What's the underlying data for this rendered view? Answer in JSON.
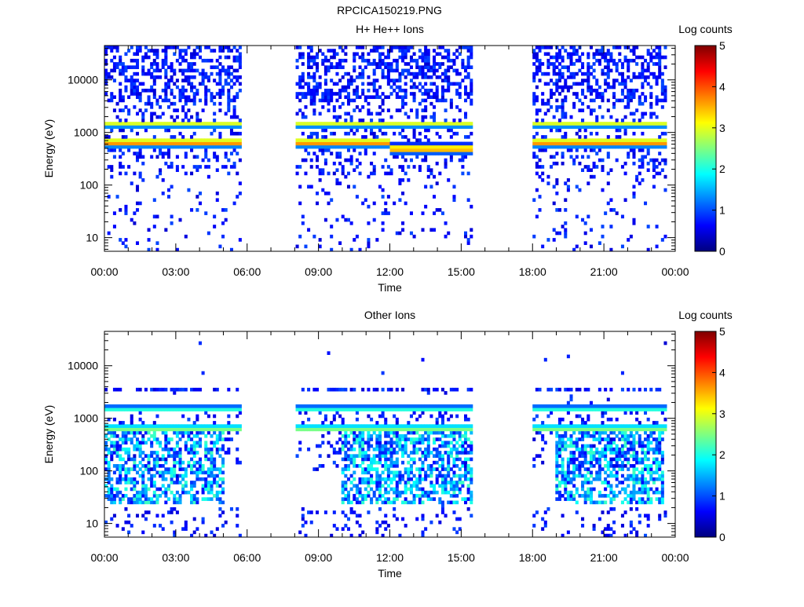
{
  "page_title": "RPCICA150219.PNG",
  "chart_data": [
    {
      "type": "heatmap",
      "title": "H+ He++ Ions",
      "xlabel": "Time",
      "ylabel": "Energy (eV)",
      "colorbar_label": "Log counts",
      "x_range_hours": [
        0,
        24
      ],
      "y_range_ev": [
        5.5,
        45000
      ],
      "y_scale": "log",
      "x_tick_labels": [
        "00:00",
        "03:00",
        "06:00",
        "09:00",
        "12:00",
        "15:00",
        "18:00",
        "21:00",
        "00:00"
      ],
      "y_tick_labels": [
        "10",
        "100",
        "1000",
        "10000"
      ],
      "y_tick_values": [
        10,
        100,
        1000,
        10000
      ],
      "colorbar_ticks": [
        "0",
        "1",
        "2",
        "3",
        "4",
        "5"
      ],
      "colorbar_range": [
        0,
        5
      ],
      "data_intervals_hours": [
        [
          0,
          5.8
        ],
        [
          8.05,
          15.5
        ],
        [
          18.0,
          23.7
        ]
      ],
      "bands": [
        {
          "name": "upper band",
          "center_ev": 1450,
          "peak_log_counts": 3.0
        },
        {
          "name": "lower band",
          "center_ev": 650,
          "peak_log_counts": 3.9
        }
      ]
    },
    {
      "type": "heatmap",
      "title": "Other Ions",
      "xlabel": "Time",
      "ylabel": "Energy (eV)",
      "colorbar_label": "Log counts",
      "x_range_hours": [
        0,
        24
      ],
      "y_range_ev": [
        5.5,
        45000
      ],
      "y_scale": "log",
      "x_tick_labels": [
        "00:00",
        "03:00",
        "06:00",
        "09:00",
        "12:00",
        "15:00",
        "18:00",
        "21:00",
        "00:00"
      ],
      "y_tick_labels": [
        "10",
        "100",
        "1000",
        "10000"
      ],
      "y_tick_values": [
        10,
        100,
        1000,
        10000
      ],
      "colorbar_ticks": [
        "0",
        "1",
        "2",
        "3",
        "4",
        "5"
      ],
      "colorbar_range": [
        0,
        5
      ],
      "data_intervals_hours": [
        [
          0,
          5.8
        ],
        [
          8.05,
          15.5
        ],
        [
          18.0,
          23.7
        ]
      ],
      "bands": [
        {
          "name": "upper band",
          "center_ev": 1550,
          "peak_log_counts": 2.4
        },
        {
          "name": "lower band",
          "center_ev": 650,
          "peak_log_counts": 2.8
        }
      ]
    }
  ]
}
